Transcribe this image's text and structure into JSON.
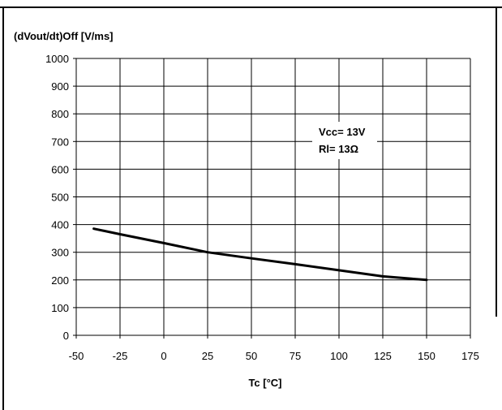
{
  "chart_data": {
    "type": "line",
    "title": "",
    "ylabel": "(dVout/dt)Off [V/ms]",
    "xlabel": "Tc [°C]",
    "xlim": [
      -50,
      175
    ],
    "ylim": [
      0,
      1000
    ],
    "x_ticks": [
      "-50",
      "-25",
      "0",
      "25",
      "50",
      "75",
      "100",
      "125",
      "150",
      "175"
    ],
    "y_ticks": [
      "0",
      "100",
      "200",
      "300",
      "400",
      "500",
      "600",
      "700",
      "800",
      "900",
      "1000"
    ],
    "grid": true,
    "legend": "none",
    "series": [
      {
        "color": "#000000",
        "x": [
          -40,
          -25,
          0,
          25,
          50,
          75,
          100,
          125,
          150
        ],
        "y": [
          385,
          365,
          333,
          300,
          278,
          257,
          235,
          213,
          200
        ]
      }
    ],
    "annotations": [
      "Vcc= 13V",
      "Rl= 13Ω"
    ]
  }
}
